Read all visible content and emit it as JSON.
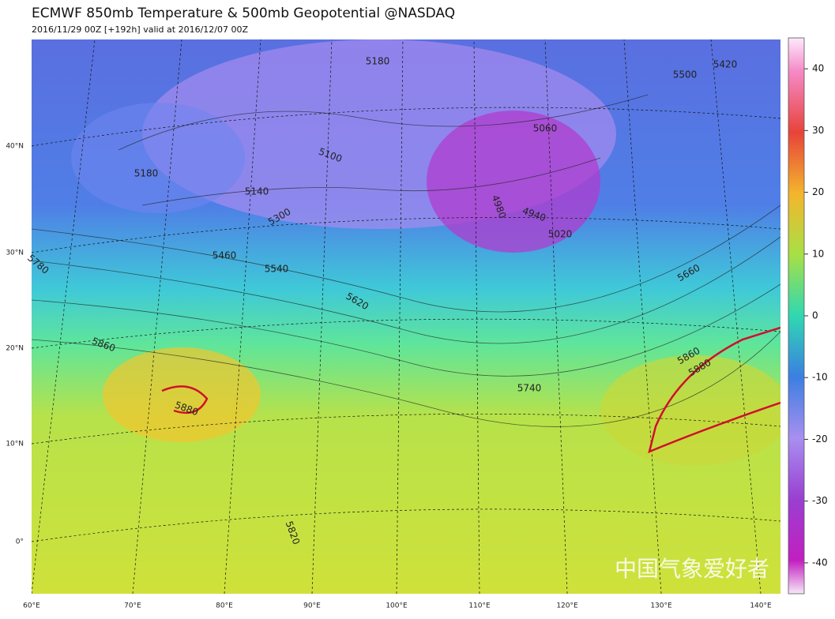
{
  "header": {
    "title": "ECMWF 850mb Temperature & 500mb Geopotential @NASDAQ",
    "subtitle": "2016/11/29 00Z [+192h] valid at 2016/12/07 00Z"
  },
  "colorbar": {
    "range": [
      -45,
      45
    ],
    "ticks": [
      40,
      30,
      20,
      10,
      0,
      -10,
      -20,
      -30,
      -40
    ]
  },
  "latitude_labels": [
    "40°N",
    "30°N",
    "20°N",
    "10°N",
    "0°"
  ],
  "longitude_labels": [
    "60°E",
    "70°E",
    "80°E",
    "90°E",
    "100°E",
    "110°E",
    "120°E",
    "130°E",
    "140°E"
  ],
  "contour_labels": [
    "5180",
    "5500",
    "5420",
    "5060",
    "5100",
    "5180",
    "5140",
    "4980",
    "4940",
    "5020",
    "5300",
    "5460",
    "5540",
    "5660",
    "5620",
    "5780",
    "5860",
    "5860",
    "5880",
    "5880",
    "5740",
    "5820"
  ],
  "watermark": "中国气象爱好者"
}
